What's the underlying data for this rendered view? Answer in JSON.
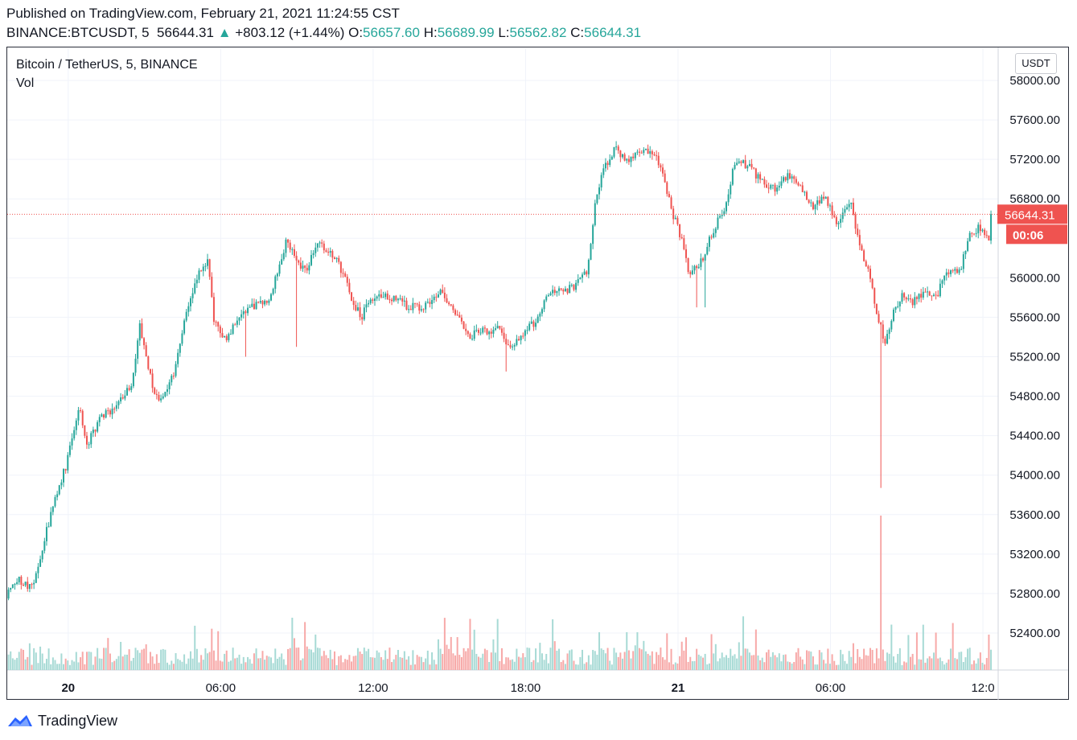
{
  "header": {
    "published": "Published on TradingView.com, February 21, 2021 11:24:55 CST",
    "symbol": "BINANCE:BTCUSDT, 5",
    "last": "56644.31",
    "change_arrow": "▲",
    "change": "+803.12 (+1.44%)",
    "o_label": "O:",
    "o_value": "56657.60",
    "h_label": "H:",
    "h_value": "56689.99",
    "l_label": "L:",
    "l_value": "56562.82",
    "c_label": "C:",
    "c_value": "56644.31"
  },
  "legend": {
    "title": "Bitcoin / TetherUS, 5, BINANCE",
    "volume_label": "Vol"
  },
  "currency_button": "USDT",
  "price_tag": {
    "price": "56644.31",
    "countdown": "00:06"
  },
  "footer": {
    "brand": "TradingView",
    "logo_icon": "tradingview-logo-icon"
  },
  "colors": {
    "up": "#26a69a",
    "down": "#ef5350",
    "vol_up": "#a7dad5",
    "vol_down": "#f7a9a8",
    "grid": "#f0f3fa"
  },
  "chart_data": {
    "type": "candlestick",
    "interval": "5m",
    "y_ticks": [
      "58000.00",
      "57600.00",
      "57200.00",
      "56800.00",
      "56400.00",
      "56000.00",
      "55600.00",
      "55200.00",
      "54800.00",
      "54400.00",
      "54000.00",
      "53600.00",
      "53200.00",
      "52800.00",
      "52400.00"
    ],
    "ylim": [
      52020,
      58150
    ],
    "x_ticks": [
      {
        "label": "20",
        "bold": true,
        "hour": 0
      },
      {
        "label": "06:00",
        "bold": false,
        "hour": 6
      },
      {
        "label": "12:00",
        "bold": false,
        "hour": 12
      },
      {
        "label": "18:00",
        "bold": false,
        "hour": 18
      },
      {
        "label": "21",
        "bold": true,
        "hour": 24
      },
      {
        "label": "06:00",
        "bold": false,
        "hour": 30
      },
      {
        "label": "12:0",
        "bold": false,
        "hour": 36
      }
    ],
    "xlim_hours": [
      -2.4,
      36.6
    ],
    "last_price": 56644.31,
    "price_path": [
      [
        -2.4,
        52750
      ],
      [
        -2.0,
        52950
      ],
      [
        -1.3,
        52850
      ],
      [
        -1.0,
        53200
      ],
      [
        -0.5,
        53700
      ],
      [
        0.0,
        54100
      ],
      [
        0.5,
        54700
      ],
      [
        0.8,
        54300
      ],
      [
        1.4,
        54600
      ],
      [
        2.0,
        54700
      ],
      [
        2.6,
        54950
      ],
      [
        2.9,
        55550
      ],
      [
        3.2,
        55100
      ],
      [
        3.6,
        54750
      ],
      [
        4.2,
        55000
      ],
      [
        4.6,
        55500
      ],
      [
        5.1,
        56000
      ],
      [
        5.6,
        56200
      ],
      [
        5.8,
        55550
      ],
      [
        6.3,
        55350
      ],
      [
        6.8,
        55600
      ],
      [
        7.3,
        55700
      ],
      [
        8.0,
        55800
      ],
      [
        8.7,
        56400
      ],
      [
        9.0,
        56200
      ],
      [
        9.5,
        56050
      ],
      [
        9.8,
        56350
      ],
      [
        10.3,
        56300
      ],
      [
        10.8,
        56100
      ],
      [
        11.3,
        55750
      ],
      [
        11.6,
        55600
      ],
      [
        12.2,
        55850
      ],
      [
        12.8,
        55800
      ],
      [
        13.5,
        55700
      ],
      [
        14.1,
        55700
      ],
      [
        14.8,
        55850
      ],
      [
        15.2,
        55700
      ],
      [
        15.8,
        55400
      ],
      [
        16.4,
        55450
      ],
      [
        17.0,
        55500
      ],
      [
        17.5,
        55250
      ],
      [
        18.0,
        55450
      ],
      [
        18.5,
        55550
      ],
      [
        19.0,
        55850
      ],
      [
        20.0,
        55900
      ],
      [
        20.5,
        56050
      ],
      [
        20.8,
        56700
      ],
      [
        21.1,
        57100
      ],
      [
        21.6,
        57300
      ],
      [
        22.1,
        57200
      ],
      [
        22.8,
        57300
      ],
      [
        23.4,
        57150
      ],
      [
        23.8,
        56700
      ],
      [
        24.2,
        56400
      ],
      [
        24.5,
        56050
      ],
      [
        24.9,
        56100
      ],
      [
        25.4,
        56450
      ],
      [
        25.9,
        56700
      ],
      [
        26.3,
        57150
      ],
      [
        26.8,
        57150
      ],
      [
        27.3,
        57000
      ],
      [
        27.9,
        56900
      ],
      [
        28.4,
        57050
      ],
      [
        28.9,
        56950
      ],
      [
        29.4,
        56700
      ],
      [
        29.8,
        56850
      ],
      [
        30.3,
        56550
      ],
      [
        30.9,
        56750
      ],
      [
        31.2,
        56350
      ],
      [
        31.6,
        56050
      ],
      [
        31.9,
        55650
      ],
      [
        32.2,
        55350
      ],
      [
        32.5,
        55600
      ],
      [
        32.9,
        55800
      ],
      [
        33.3,
        55750
      ],
      [
        33.8,
        55850
      ],
      [
        34.3,
        55850
      ],
      [
        34.7,
        56050
      ],
      [
        35.2,
        56100
      ],
      [
        35.6,
        56450
      ],
      [
        35.9,
        56500
      ],
      [
        36.3,
        56400
      ],
      [
        36.6,
        56644
      ]
    ],
    "spikes": [
      {
        "hour": 7.0,
        "low": 55200
      },
      {
        "hour": 9.0,
        "low": 55300
      },
      {
        "hour": 17.2,
        "low": 55050
      },
      {
        "hour": 24.7,
        "low": 55700
      },
      {
        "hour": 25.1,
        "low": 55700
      },
      {
        "hour": 32.0,
        "low": 53870,
        "volume_peak": true
      }
    ]
  }
}
